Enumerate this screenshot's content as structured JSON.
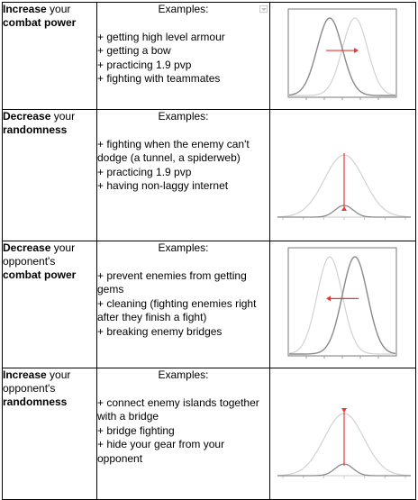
{
  "rows": [
    {
      "label_parts": [
        {
          "text": "Increase",
          "bold": true
        },
        {
          "text": " your",
          "bold": false
        },
        {
          "text": "combat power",
          "bold": true
        }
      ],
      "examples_header": "Examples:",
      "items": [
        "+ getting high level armour",
        "+ getting a bow",
        "+ practicing 1.9 pvp",
        "+ fighting with teammates"
      ],
      "plot": {
        "kind": "shift",
        "direction": "right"
      }
    },
    {
      "label_parts": [
        {
          "text": "Decrease",
          "bold": true
        },
        {
          "text": " your",
          "bold": false
        },
        {
          "text": "randomness",
          "bold": true
        }
      ],
      "examples_header": "Examples:",
      "items": [
        "+ fighting when the enemy can't dodge (a tunnel, a spiderweb)",
        "+ practicing 1.9 pvp",
        "+ having non-laggy internet"
      ],
      "plot": {
        "kind": "narrow",
        "direction": "up"
      }
    },
    {
      "label_parts": [
        {
          "text": "Decrease",
          "bold": true
        },
        {
          "text": " your opponent's",
          "bold": false
        },
        {
          "text": "combat power",
          "bold": true
        }
      ],
      "examples_header": "Examples:",
      "items": [
        "+ prevent enemies from getting gems",
        "+ cleaning (fighting enemies right after they finish a fight)",
        "+ breaking enemy bridges"
      ],
      "plot": {
        "kind": "shift",
        "direction": "left"
      }
    },
    {
      "label_parts": [
        {
          "text": "Increase",
          "bold": true
        },
        {
          "text": " your opponent's",
          "bold": false
        },
        {
          "text": "randomness",
          "bold": true
        }
      ],
      "examples_header": "Examples:",
      "items": [
        "+ connect enemy islands together with a bridge",
        "+ bridge fighting",
        "+ hide your gear from your opponent"
      ],
      "plot": {
        "kind": "narrow",
        "direction": "down"
      }
    }
  ],
  "colors": {
    "arrow": "#e53935",
    "curve_dark": "#8a8a8a",
    "curve_light": "#d2d2d2"
  }
}
